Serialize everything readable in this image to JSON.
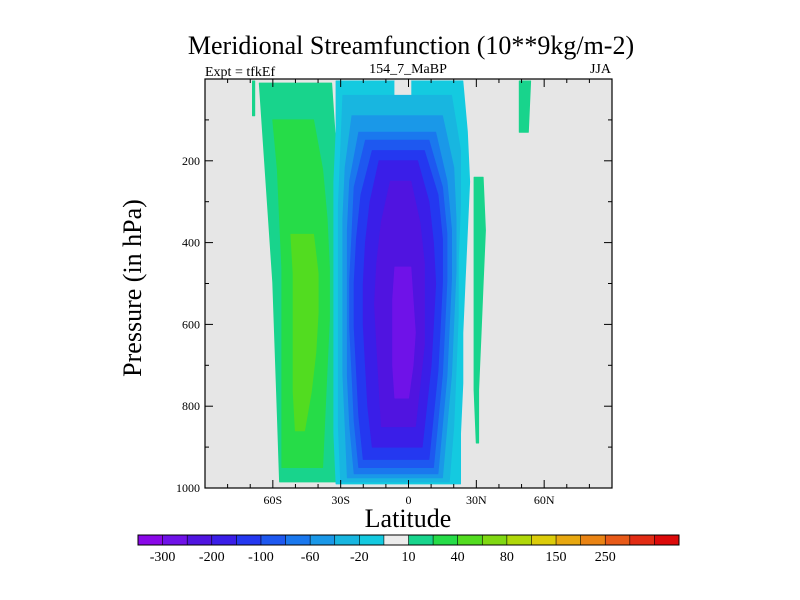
{
  "chart_data": {
    "type": "heatmap",
    "title": "Meridional Streamfunction (10**9kg/m-2)",
    "subtitle_left": "Expt = tfkEf",
    "subtitle_center": "154_7_MaBP",
    "subtitle_right": "JJA",
    "xlabel": "Latitude",
    "ylabel": "Pressure (in hPa)",
    "x_range": [
      -90,
      90
    ],
    "y_range": [
      0,
      1000
    ],
    "y_inverted": true,
    "x_ticks": [
      {
        "value": -60,
        "label": "60S"
      },
      {
        "value": -30,
        "label": "30S"
      },
      {
        "value": 0,
        "label": "0"
      },
      {
        "value": 30,
        "label": "30N"
      },
      {
        "value": 60,
        "label": "60N"
      }
    ],
    "y_ticks": [
      {
        "value": 200,
        "label": "200"
      },
      {
        "value": 400,
        "label": "400"
      },
      {
        "value": 600,
        "label": "600"
      },
      {
        "value": 800,
        "label": "800"
      },
      {
        "value": 1000,
        "label": "1000"
      }
    ],
    "background_color": "#e6e6e6",
    "colorbar": {
      "colors": [
        "#8a08e8",
        "#6f12e8",
        "#5014e0",
        "#3a1ee8",
        "#2438f0",
        "#1e58f0",
        "#1a78ee",
        "#1a98e8",
        "#18b6e0",
        "#14cae0",
        "#ececec",
        "#18d48c",
        "#26dc48",
        "#52dc20",
        "#80d812",
        "#b0d80a",
        "#dccc0a",
        "#e8a810",
        "#ea8414",
        "#e85a18",
        "#e22c14",
        "#dc0a0a"
      ],
      "labels": [
        {
          "index": 1,
          "text": "-300"
        },
        {
          "index": 3,
          "text": "-200"
        },
        {
          "index": 5,
          "text": "-100"
        },
        {
          "index": 7,
          "text": "-60"
        },
        {
          "index": 9,
          "text": "-20"
        },
        {
          "index": 11,
          "text": "10"
        },
        {
          "index": 13,
          "text": "40"
        },
        {
          "index": 15,
          "text": "80"
        },
        {
          "index": 17,
          "text": "150"
        },
        {
          "index": 19,
          "text": "250"
        }
      ]
    },
    "regions": [
      {
        "name": "cell-south-outer",
        "color": "#18d48c",
        "pmin": 10,
        "pmax": 985,
        "lat": [
          -65,
          -58,
          -52,
          -46,
          -40,
          -34,
          -29,
          -25,
          -24
        ],
        "lo": [
          -66,
          -64,
          -62,
          -60,
          -59,
          -58,
          -57
        ],
        "hi": [
          -34,
          -32,
          -30,
          -29,
          -28,
          -27,
          -26
        ]
      },
      {
        "name": "cell-south-middle",
        "color": "#26dc48",
        "pmin": 100,
        "pmax": 950,
        "lo": [
          -60,
          -58,
          -57,
          -56,
          -56,
          -56,
          -56,
          -56
        ],
        "hi": [
          -42,
          -38,
          -36,
          -35,
          -35,
          -36,
          -37,
          -38
        ]
      },
      {
        "name": "cell-south-inner",
        "color": "#52dc20",
        "pmin": 380,
        "pmax": 860,
        "lo": [
          -52,
          -51,
          -51,
          -51,
          -51,
          -50
        ],
        "hi": [
          -42,
          -40,
          -40,
          -41,
          -43,
          -46
        ]
      },
      {
        "name": "cell-south-thin-strip",
        "color": "#18d48c",
        "pmin": 5,
        "pmax": 90,
        "lo": [
          -69,
          -69
        ],
        "hi": [
          -68,
          -68
        ]
      },
      {
        "name": "cell-north-strip-a",
        "color": "#18d48c",
        "pmin": 240,
        "pmax": 890,
        "lo": [
          29,
          29,
          29,
          29,
          29,
          30
        ],
        "hi": [
          33,
          34,
          33,
          32,
          31,
          31
        ]
      },
      {
        "name": "cell-north-strip-b",
        "color": "#18d48c",
        "pmin": 5,
        "pmax": 130,
        "lo": [
          49,
          49
        ],
        "hi": [
          54,
          53
        ]
      },
      {
        "name": "cell-tropics-1",
        "color": "#14cae0",
        "pmin": 5,
        "pmax": 990,
        "lo": [
          -32,
          -32,
          -33,
          -33,
          -33,
          -33,
          -33,
          -33,
          -32
        ],
        "hi": [
          24,
          26,
          27,
          26,
          25,
          24,
          24,
          23,
          23
        ]
      },
      {
        "name": "cell-tropics-gap",
        "color": "#e6e6e6",
        "pmin": 5,
        "pmax": 60,
        "lo": [
          -6,
          -6
        ],
        "hi": [
          1,
          1
        ]
      },
      {
        "name": "cell-tropics-2",
        "color": "#18b6e0",
        "pmin": 40,
        "pmax": 985,
        "lo": [
          -29,
          -30,
          -31,
          -31,
          -31,
          -31,
          -31,
          -30
        ],
        "hi": [
          19,
          23,
          23,
          22,
          22,
          21,
          20,
          18
        ]
      },
      {
        "name": "cell-tropics-3",
        "color": "#1a98e8",
        "pmin": 90,
        "pmax": 975,
        "lo": [
          -25,
          -28,
          -29,
          -29,
          -29,
          -29,
          -28,
          -27
        ],
        "hi": [
          15,
          20,
          21,
          21,
          20,
          19,
          17,
          15
        ]
      },
      {
        "name": "cell-tropics-4",
        "color": "#1a78ee",
        "pmin": 130,
        "pmax": 965,
        "lo": [
          -22,
          -26,
          -27,
          -27,
          -27,
          -27,
          -26,
          -24
        ],
        "hi": [
          12,
          17,
          19,
          19,
          18,
          17,
          15,
          13
        ]
      },
      {
        "name": "cell-tropics-5",
        "color": "#1e58f0",
        "pmin": 150,
        "pmax": 950,
        "lo": [
          -19,
          -24,
          -25,
          -26,
          -26,
          -25,
          -24,
          -22
        ],
        "hi": [
          9,
          15,
          17,
          17,
          16,
          15,
          13,
          11
        ]
      },
      {
        "name": "cell-tropics-6",
        "color": "#2438f0",
        "pmin": 175,
        "pmax": 930,
        "lo": [
          -16,
          -21,
          -23,
          -24,
          -24,
          -23,
          -22,
          -20
        ],
        "hi": [
          7,
          13,
          15,
          15,
          14,
          13,
          11,
          9
        ]
      },
      {
        "name": "cell-tropics-7",
        "color": "#3a1ee8",
        "pmin": 200,
        "pmax": 900,
        "lo": [
          -13,
          -17,
          -19,
          -20,
          -20,
          -19,
          -18,
          -16
        ],
        "hi": [
          4,
          9,
          11,
          12,
          11,
          10,
          8,
          6
        ]
      },
      {
        "name": "cell-tropics-8",
        "color": "#5014e0",
        "pmin": 250,
        "pmax": 850,
        "lo": [
          -8,
          -12,
          -14,
          -15,
          -14,
          -13,
          -12
        ],
        "hi": [
          1,
          5,
          7,
          7,
          7,
          5,
          3
        ]
      },
      {
        "name": "cell-tropics-9",
        "color": "#6f12e8",
        "pmin": 460,
        "pmax": 780,
        "lo": [
          -6,
          -7,
          -7,
          -7,
          -6
        ],
        "hi": [
          1,
          2,
          3,
          2,
          0
        ]
      }
    ]
  }
}
